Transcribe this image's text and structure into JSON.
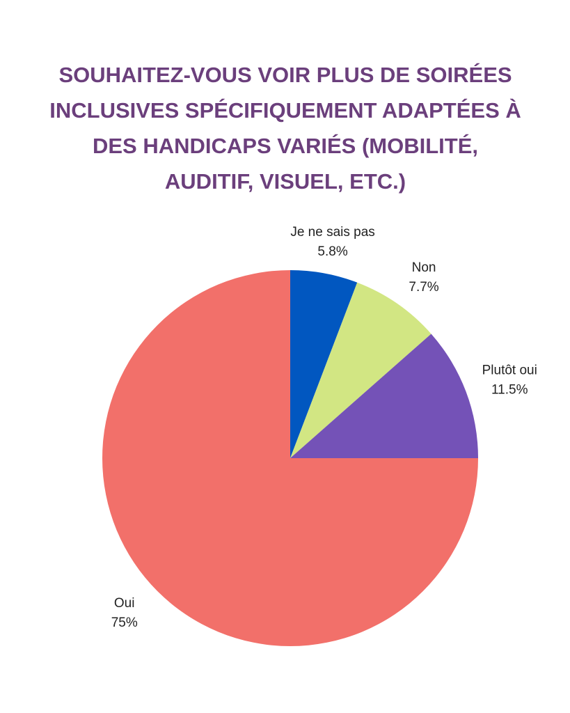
{
  "chart_data": {
    "type": "pie",
    "title": "SOUHAITEZ-VOUS VOIR PLUS DE SOIRÉES INCLUSIVES SPÉCIFIQUEMENT ADAPTÉES À DES HANDICAPS VARIÉS (MOBILITÉ, AUDITIF, VISUEL, ETC.)",
    "categories": [
      "Je ne sais pas",
      "Non",
      "Plutôt oui",
      "Oui"
    ],
    "values": [
      5.8,
      7.7,
      11.5,
      75
    ],
    "value_labels": [
      "5.8%",
      "7.7%",
      "11.5%",
      "75%"
    ],
    "colors": [
      "#0157c0",
      "#d2e683",
      "#7452b7",
      "#f2706a"
    ]
  }
}
